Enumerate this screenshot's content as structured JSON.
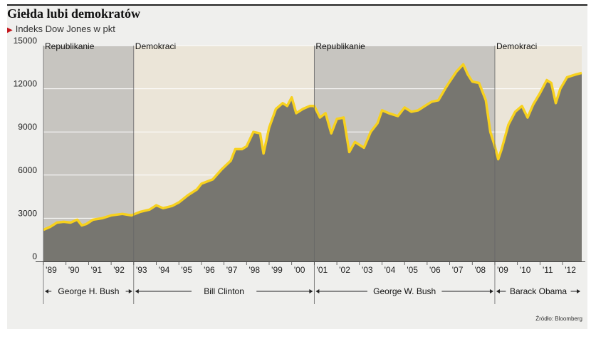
{
  "title": "Giełda lubi demokratów",
  "subtitle": "Indeks Dow Jones w pkt",
  "source": "Źródło: Bloomberg",
  "colors": {
    "line": "#f7d11e",
    "area": "#777670",
    "republican_band": "#c7c5c0",
    "democrat_band": "#ebe5d8",
    "panel": "#efefed",
    "marker": "#c4161c"
  },
  "parties": [
    {
      "label": "Republikanie",
      "from": 1989,
      "to": 1993,
      "color": "#c7c5c0"
    },
    {
      "label": "Demokraci",
      "from": 1993,
      "to": 2001,
      "color": "#ebe5d8"
    },
    {
      "label": "Republikanie",
      "from": 2001,
      "to": 2009,
      "color": "#c7c5c0"
    },
    {
      "label": "Demokraci",
      "from": 2009,
      "to": 2013,
      "color": "#ebe5d8"
    }
  ],
  "presidents": [
    {
      "label": "George H. Bush",
      "from": 1989,
      "to": 1993
    },
    {
      "label": "Bill Clinton",
      "from": 1993,
      "to": 2001
    },
    {
      "label": "George W. Bush",
      "from": 2001,
      "to": 2009
    },
    {
      "label": "Barack Obama",
      "from": 2009,
      "to": 2013
    }
  ],
  "chart_data": {
    "type": "area",
    "title": "Giełda lubi demokratów",
    "subtitle": "Indeks Dow Jones w pkt",
    "xlim": [
      1989,
      2012.85
    ],
    "ylim": [
      0,
      15000
    ],
    "yticks": [
      0,
      3000,
      6000,
      9000,
      12000,
      15000
    ],
    "ytick_labels": [
      "0",
      "3000",
      "6000",
      "9000",
      "12000",
      "15000"
    ],
    "xticks": [
      "'89",
      "'90",
      "'91",
      "'92",
      "'93",
      "'94",
      "'95",
      "'96",
      "'97",
      "'98",
      "'99",
      "'00",
      "'01",
      "'02",
      "'03",
      "'04",
      "'05",
      "'06",
      "'07",
      "'08",
      "'09",
      "'10",
      "'11",
      "'12"
    ],
    "xtick_years": [
      1989,
      1990,
      1991,
      1992,
      1993,
      1994,
      1995,
      1996,
      1997,
      1998,
      1999,
      2000,
      2001,
      2002,
      2003,
      2004,
      2005,
      2006,
      2007,
      2008,
      2009,
      2010,
      2011,
      2012
    ],
    "series": [
      {
        "x": [
          1989.0,
          1989.3,
          1989.6,
          1989.9,
          1990.2,
          1990.5,
          1990.7,
          1990.9,
          1991.2,
          1991.6,
          1992.0,
          1992.5,
          1992.9,
          1993.3,
          1993.7,
          1994.0,
          1994.3,
          1994.7,
          1995.0,
          1995.4,
          1995.8,
          1996.0,
          1996.5,
          1996.9,
          1997.3,
          1997.5,
          1997.8,
          1998.0,
          1998.3,
          1998.6,
          1998.75,
          1999.0,
          1999.3,
          1999.6,
          1999.8,
          2000.0,
          2000.2,
          2000.5,
          2000.8,
          2001.0,
          2001.25,
          2001.5,
          2001.75,
          2002.0,
          2002.3,
          2002.55,
          2002.8,
          2003.0,
          2003.2,
          2003.5,
          2003.8,
          2004.0,
          2004.3,
          2004.7,
          2005.0,
          2005.3,
          2005.6,
          2005.9,
          2006.2,
          2006.5,
          2006.8,
          2007.0,
          2007.3,
          2007.6,
          2007.8,
          2008.0,
          2008.3,
          2008.6,
          2008.8,
          2009.0,
          2009.15,
          2009.3,
          2009.6,
          2009.9,
          2010.2,
          2010.45,
          2010.7,
          2011.0,
          2011.3,
          2011.5,
          2011.7,
          2011.9,
          2012.2,
          2012.4,
          2012.6,
          2012.85
        ],
        "y": [
          2200,
          2400,
          2700,
          2750,
          2700,
          2900,
          2500,
          2600,
          2900,
          3000,
          3200,
          3300,
          3200,
          3450,
          3600,
          3900,
          3700,
          3850,
          4100,
          4600,
          5000,
          5400,
          5700,
          6400,
          7000,
          7800,
          7800,
          8000,
          9000,
          8900,
          7500,
          9300,
          10600,
          11000,
          10800,
          11400,
          10300,
          10600,
          10800,
          10800,
          10000,
          10300,
          8900,
          9900,
          10000,
          7600,
          8300,
          8100,
          7900,
          9000,
          9600,
          10500,
          10300,
          10100,
          10700,
          10400,
          10500,
          10800,
          11100,
          11200,
          12000,
          12500,
          13200,
          13700,
          13000,
          12500,
          12400,
          11200,
          9000,
          8000,
          7100,
          7800,
          9500,
          10400,
          10800,
          10000,
          10900,
          11700,
          12600,
          12400,
          11000,
          12000,
          12800,
          12900,
          13000,
          13100
        ]
      }
    ]
  }
}
